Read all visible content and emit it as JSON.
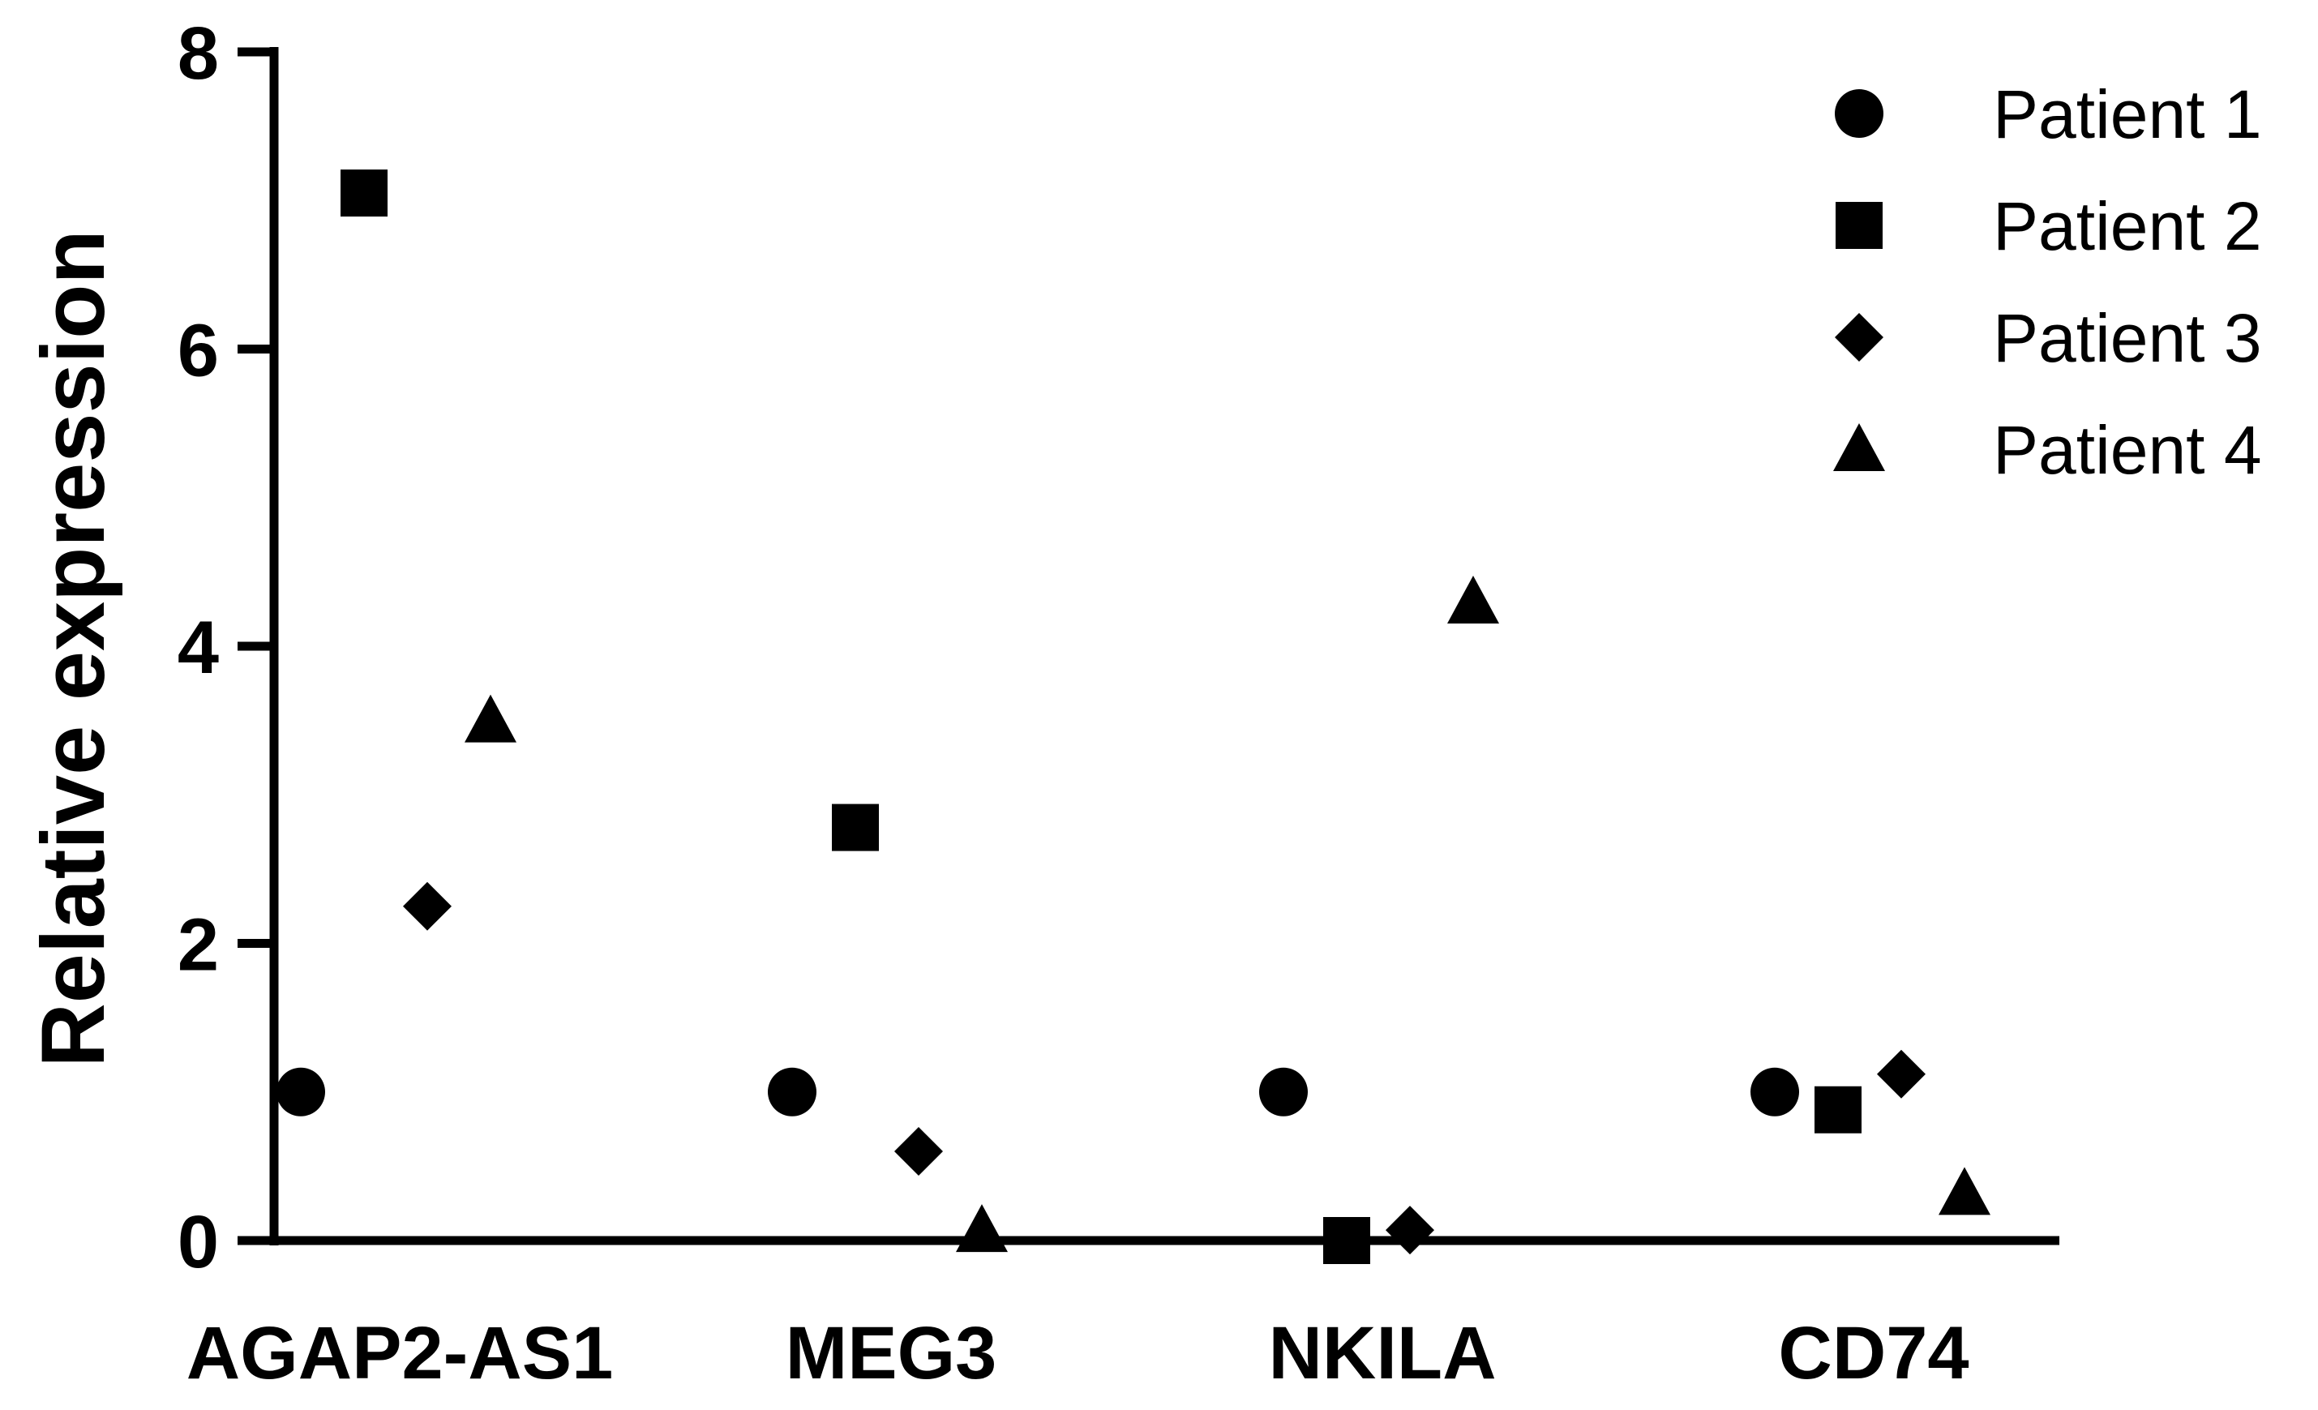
{
  "chart_data": {
    "type": "scatter",
    "ylabel": "Relative expression",
    "xlabel": "",
    "ylim": [
      0,
      8
    ],
    "yticks": [
      0,
      2,
      4,
      6,
      8
    ],
    "categories": [
      "AGAP2-AS1",
      "MEG3",
      "NKILA",
      "CD74"
    ],
    "legend_position": "top-right",
    "series": [
      {
        "name": "Patient 1",
        "marker": "circle",
        "color": "#000000",
        "values": [
          1.0,
          1.0,
          1.0,
          1.0
        ]
      },
      {
        "name": "Patient 2",
        "marker": "square",
        "color": "#000000",
        "values": [
          7.05,
          2.78,
          0.0,
          0.88
        ]
      },
      {
        "name": "Patient 3",
        "marker": "diamond",
        "color": "#000000",
        "values": [
          2.25,
          0.6,
          0.07,
          1.12
        ]
      },
      {
        "name": "Patient 4",
        "marker": "triangle",
        "color": "#000000",
        "values": [
          3.5,
          0.07,
          4.3,
          0.32
        ]
      }
    ]
  }
}
